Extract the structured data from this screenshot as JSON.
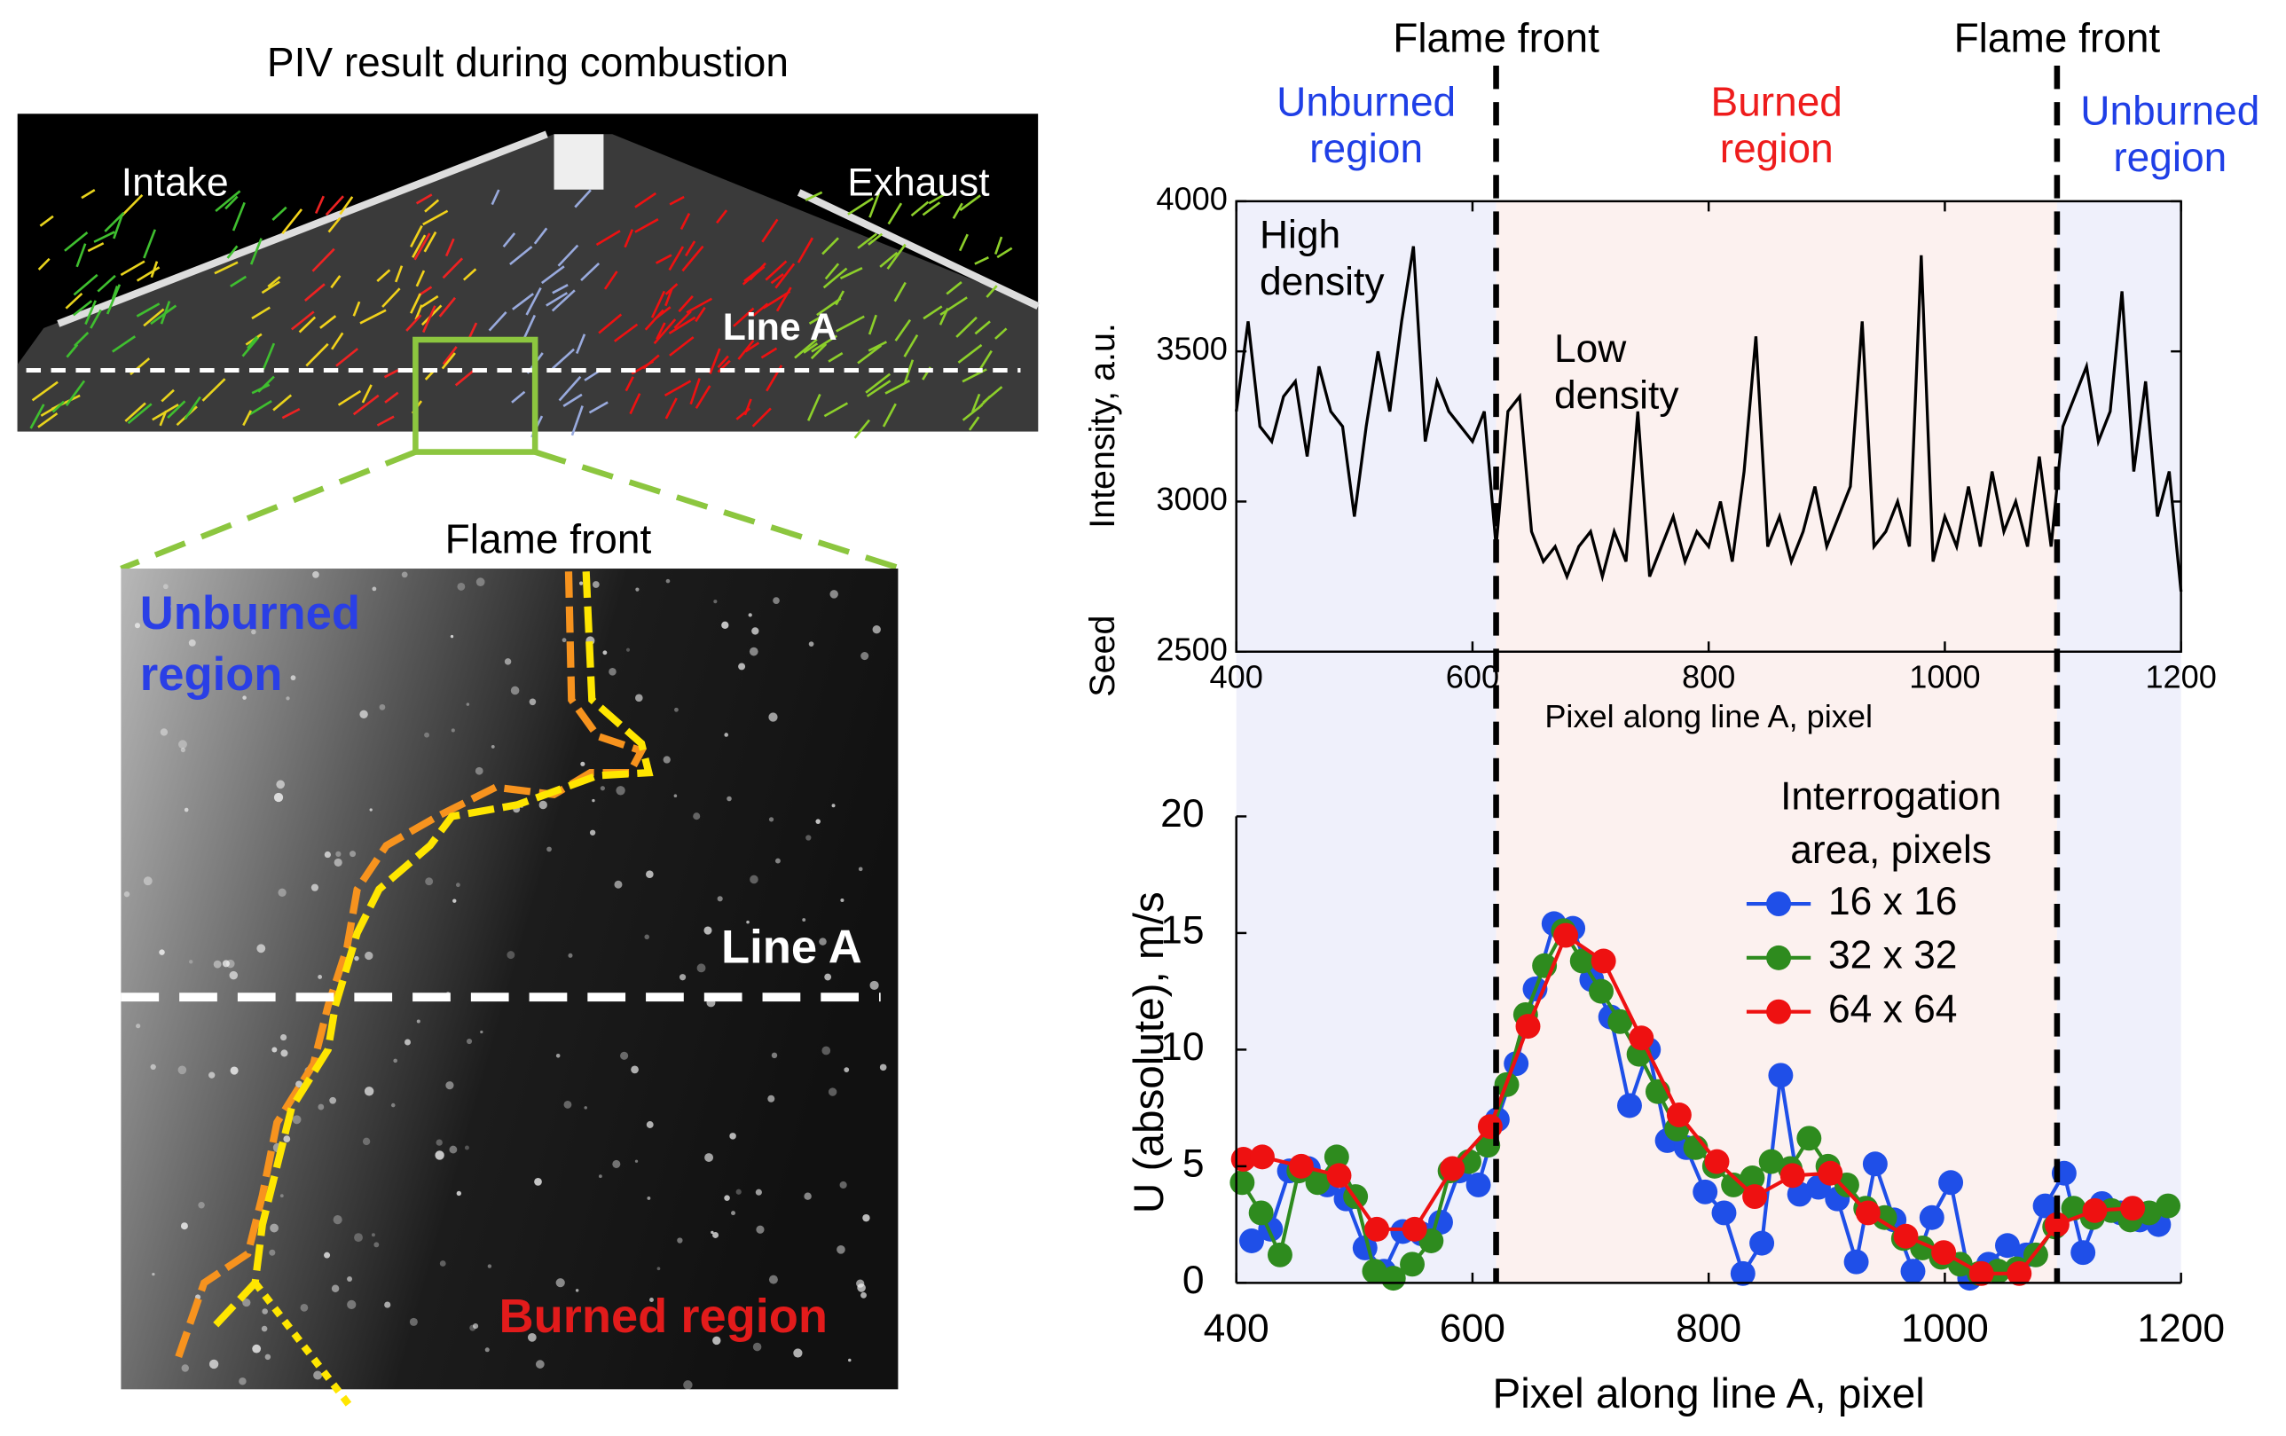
{
  "images": {
    "title": "PIV result during combustion",
    "overview_labels": [
      "Intake",
      "Exhaust",
      "Line A"
    ],
    "zoom_labels": {
      "flame_front": "Flame front",
      "unburned": [
        "Unburned",
        "region"
      ],
      "line": "Line A",
      "burned": "Burned region"
    }
  },
  "chart_data": [
    {
      "type": "line",
      "x_label": "Pixel along line A, pixel",
      "y_label": "Intensity, a.u.",
      "side_label": "Seed",
      "xlim": [
        400,
        1200
      ],
      "xticks": [
        400,
        600,
        800,
        1000,
        1200
      ],
      "ylim": [
        2500,
        4000
      ],
      "yticks": [
        2500,
        3000,
        3500,
        4000
      ],
      "annotations": [
        [
          "High",
          "density"
        ],
        [
          "Low",
          "density"
        ]
      ],
      "flame_fronts": [
        {
          "label": "Flame front",
          "x": 620
        },
        {
          "label": "Flame front",
          "x": 1095
        }
      ],
      "regions": [
        {
          "label": [
            "Unburned",
            "region"
          ],
          "color": "#1f3fe6",
          "fill": "#eff0fb"
        },
        {
          "label": [
            "Burned",
            "region"
          ],
          "color": "#ee1c1c",
          "fill": "#fcf1ef"
        },
        {
          "label": [
            "Unburned",
            "region"
          ],
          "color": "#1f3fe6",
          "fill": "#eff0fb"
        }
      ],
      "series": [
        {
          "color": "#000000",
          "x": [
            400,
            410,
            420,
            430,
            440,
            450,
            460,
            470,
            480,
            490,
            500,
            510,
            520,
            530,
            540,
            550,
            560,
            570,
            580,
            590,
            600,
            610,
            620,
            630,
            640,
            650,
            660,
            670,
            680,
            690,
            700,
            710,
            720,
            730,
            740,
            750,
            760,
            770,
            780,
            790,
            800,
            810,
            820,
            830,
            840,
            850,
            860,
            870,
            880,
            890,
            900,
            910,
            920,
            930,
            940,
            950,
            960,
            970,
            980,
            990,
            1000,
            1010,
            1020,
            1030,
            1040,
            1050,
            1060,
            1070,
            1080,
            1090,
            1100,
            1110,
            1120,
            1130,
            1140,
            1150,
            1160,
            1170,
            1180,
            1190,
            1200
          ],
          "values": [
            3300,
            3600,
            3250,
            3200,
            3350,
            3400,
            3150,
            3450,
            3300,
            3250,
            2950,
            3250,
            3500,
            3300,
            3600,
            3850,
            3200,
            3400,
            3300,
            3250,
            3200,
            3300,
            2850,
            3300,
            3350,
            2900,
            2800,
            2850,
            2750,
            2850,
            2900,
            2750,
            2900,
            2800,
            3300,
            2750,
            2850,
            2950,
            2800,
            2900,
            2850,
            3000,
            2800,
            3100,
            3550,
            2850,
            2950,
            2800,
            2900,
            3050,
            2850,
            2950,
            3050,
            3600,
            2850,
            2900,
            3000,
            2850,
            3820,
            2800,
            2950,
            2850,
            3050,
            2850,
            3100,
            2900,
            3000,
            2850,
            3150,
            2850,
            3250,
            3350,
            3450,
            3200,
            3300,
            3700,
            3100,
            3400,
            2950,
            3100,
            2700
          ]
        }
      ]
    },
    {
      "type": "line",
      "x_label": "Pixel along line A, pixel",
      "y_label": "U (absolute), m/s",
      "xlim": [
        400,
        1200
      ],
      "xticks": [
        400,
        600,
        800,
        1000,
        1200
      ],
      "ylim": [
        0,
        20
      ],
      "yticks": [
        0,
        5,
        10,
        15,
        20
      ],
      "legend_title": [
        "Interrogation",
        "area, pixels"
      ],
      "series": [
        {
          "name": "16 x 16",
          "color": "#1f4fe8",
          "x": [
            413,
            429,
            445,
            461,
            477,
            493,
            509,
            525,
            541,
            557,
            573,
            589,
            605,
            621,
            637,
            653,
            669,
            685,
            701,
            717,
            733,
            749,
            765,
            781,
            797,
            813,
            829,
            845,
            861,
            877,
            893,
            909,
            925,
            941,
            957,
            973,
            989,
            1005,
            1021,
            1037,
            1053,
            1069,
            1085,
            1101,
            1117,
            1133,
            1149,
            1165,
            1181
          ],
          "values": [
            1.8,
            2.3,
            4.8,
            4.9,
            4.2,
            3.6,
            1.5,
            0.5,
            2.2,
            2.1,
            2.6,
            4.8,
            4.2,
            7.0,
            9.4,
            12.6,
            15.4,
            15.2,
            13.0,
            11.4,
            7.6,
            10.0,
            6.1,
            5.8,
            3.9,
            3.0,
            0.4,
            1.7,
            8.9,
            3.8,
            4.1,
            3.6,
            0.9,
            5.1,
            2.7,
            0.5,
            2.8,
            4.3,
            0.2,
            0.8,
            1.6,
            1.2,
            3.3,
            4.7,
            1.3,
            3.4,
            3.0,
            2.7,
            2.5
          ]
        },
        {
          "name": "32 x 32",
          "color": "#2e8b1e",
          "x": [
            405,
            421,
            437,
            453,
            469,
            485,
            501,
            517,
            533,
            549,
            565,
            581,
            597,
            613,
            629,
            645,
            661,
            677,
            693,
            709,
            725,
            741,
            757,
            773,
            789,
            805,
            821,
            837,
            853,
            869,
            885,
            901,
            917,
            933,
            949,
            965,
            981,
            997,
            1013,
            1029,
            1045,
            1061,
            1077,
            1093,
            1109,
            1125,
            1141,
            1157,
            1173,
            1189
          ],
          "values": [
            4.3,
            3.0,
            1.2,
            4.8,
            4.3,
            5.4,
            3.7,
            0.5,
            0.2,
            0.8,
            1.8,
            4.8,
            5.2,
            5.9,
            8.5,
            11.5,
            13.6,
            15.1,
            13.8,
            12.5,
            11.2,
            9.8,
            8.2,
            6.6,
            5.8,
            5.0,
            4.2,
            4.5,
            5.2,
            4.9,
            6.2,
            5.0,
            4.2,
            3.2,
            2.8,
            1.9,
            1.5,
            1.1,
            0.8,
            0.4,
            0.5,
            0.6,
            1.2,
            2.4,
            3.2,
            2.8,
            3.1,
            2.7,
            3.0,
            3.3
          ]
        },
        {
          "name": "64 x 64",
          "color": "#ee1111",
          "x": [
            406,
            422,
            455,
            487,
            519,
            551,
            583,
            615,
            647,
            679,
            711,
            743,
            775,
            807,
            839,
            871,
            903,
            935,
            967,
            999,
            1031,
            1063,
            1095,
            1127,
            1159
          ],
          "values": [
            5.3,
            5.4,
            5.0,
            4.6,
            2.3,
            2.3,
            4.9,
            6.7,
            11.0,
            14.9,
            13.8,
            10.5,
            7.2,
            5.2,
            3.7,
            4.6,
            4.7,
            3.0,
            2.0,
            1.3,
            0.4,
            0.4,
            2.5,
            3.1,
            3.2
          ]
        }
      ]
    }
  ]
}
